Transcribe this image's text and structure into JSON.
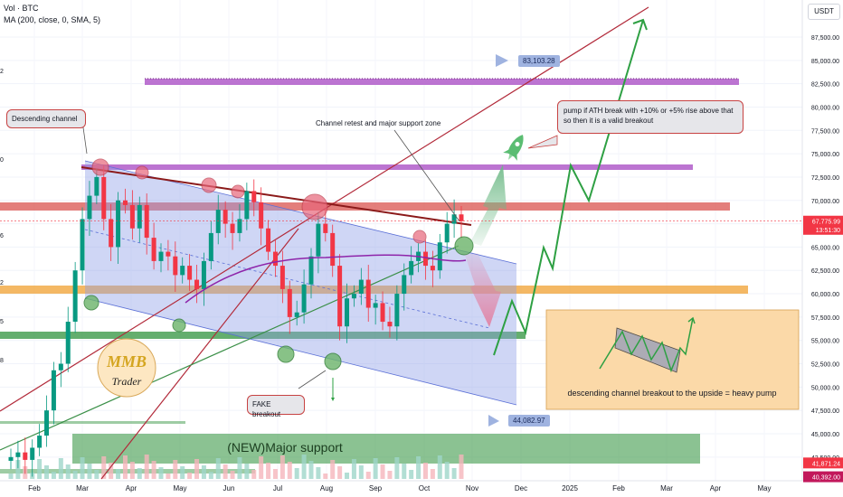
{
  "header": {
    "symbol_line": "Vol · BTC",
    "indicator_line": "MA (200, close, 0, SMA, 5)",
    "unit": "USDT"
  },
  "left_edge_labels": [
    "2",
    "0",
    "6",
    "2",
    "5",
    "8"
  ],
  "chart_data": {
    "type": "candlestick",
    "x_ticks": [
      "Feb",
      "Mar",
      "Apr",
      "May",
      "Jun",
      "Jul",
      "Aug",
      "Sep",
      "Oct",
      "Nov",
      "Dec",
      "2025",
      "Feb",
      "Mar",
      "Apr",
      "May"
    ],
    "y_ticks": [
      "87,500.00",
      "85,000.00",
      "82,500.00",
      "80,000.00",
      "77,500.00",
      "75,000.00",
      "72,500.00",
      "70,000.00",
      "67,500.00",
      "65,000.00",
      "62,500.00",
      "60,000.00",
      "57,500.00",
      "55,000.00",
      "52,500.00",
      "50,000.00",
      "47,500.00",
      "45,000.00",
      "42,500.00"
    ],
    "y_tick_values": [
      87500,
      85000,
      82500,
      80000,
      77500,
      75000,
      72500,
      70000,
      67500,
      65000,
      62500,
      60000,
      57500,
      55000,
      52500,
      50000,
      47500,
      45000,
      42500
    ],
    "ylim": [
      38500,
      90000
    ],
    "price_markers": [
      {
        "label": "67,775.99",
        "value": 67776,
        "color": "#f23645"
      },
      {
        "label": "13:51:30",
        "value": 66900,
        "color": "#f23645"
      },
      {
        "label": "41,871.24",
        "value": 41871,
        "color": "#f23645"
      },
      {
        "label": "40,392.00",
        "value": 40392,
        "color": "#c2185b"
      }
    ],
    "candles_weekly_close": [
      42500,
      43000,
      42200,
      43500,
      44800,
      47500,
      51800,
      52500,
      57000,
      62500,
      68000,
      70500,
      72500,
      68000,
      65000,
      70000,
      69500,
      67000,
      69500,
      66000,
      63500,
      64500,
      64000,
      62000,
      63000,
      61500,
      60500,
      63500,
      66500,
      69000,
      67500,
      66500,
      68000,
      71000,
      69800,
      67000,
      64500,
      63000,
      60500,
      57500,
      58000,
      61000,
      64000,
      67500,
      66500,
      63000,
      56500,
      59500,
      60000,
      61500,
      58500,
      59000,
      57000,
      56500,
      60000,
      62000,
      63500,
      64500,
      63000,
      62500,
      65500,
      67500,
      68500,
      67776
    ],
    "ma200_label": "MA 200",
    "price_labels": [
      {
        "label": "83,103.28",
        "value": 83103
      },
      {
        "label": "44,082.97",
        "value": 44083
      }
    ],
    "zones": [
      {
        "name": "resistance-82500",
        "from": 82500,
        "to": 83300,
        "color": "#b05cc9"
      },
      {
        "name": "resistance-73500",
        "from": 73200,
        "to": 73900,
        "color": "#b05cc9"
      },
      {
        "name": "resistance-69500",
        "from": 69000,
        "to": 70000,
        "color": "#d9534f"
      },
      {
        "name": "support-60000",
        "from": 59800,
        "to": 60700,
        "color": "#f0a030"
      },
      {
        "name": "support-55500",
        "from": 54900,
        "to": 55800,
        "color": "#3d9a4a"
      },
      {
        "name": "major-support",
        "from": 40000,
        "to": 44000,
        "color": "#3d9a4a"
      }
    ],
    "annotations": {
      "descending_channel": "Descending channel",
      "channel_retest": "Channel retest and major support zone",
      "pump_note": "pump if ATH break with +10% or +5% rise above that so then it is a valid breakout",
      "fake_breakout": "FAKE breakout",
      "major_support": "(NEW)Major support",
      "flag_note": "descending channel breakout to the upside = heavy pump"
    },
    "logo": {
      "letters": "MMB",
      "subtitle": "Trader"
    }
  }
}
